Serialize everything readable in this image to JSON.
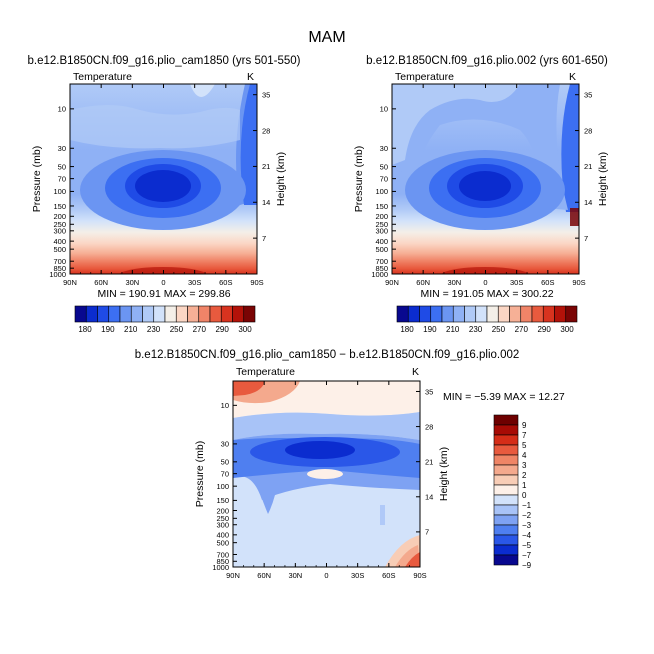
{
  "page": {
    "title": "MAM"
  },
  "colors": {
    "abs_scale": [
      "#08088f",
      "#0b2ccf",
      "#1f4be6",
      "#3c6ff2",
      "#6b95f2",
      "#8fb1f5",
      "#b0caf7",
      "#d2e2fa",
      "#f4efe8",
      "#fbd6c4",
      "#f6b096",
      "#f08468",
      "#e85a3e",
      "#d8331f",
      "#b31209",
      "#7a0404"
    ],
    "diff_scale": [
      "#08088f",
      "#0b2ccf",
      "#2a57e8",
      "#4f7ff0",
      "#7ea2f3",
      "#a8c3f7",
      "#d2e2fa",
      "#fdf0e8",
      "#f8cdb6",
      "#f4a98d",
      "#ef8566",
      "#e85a3e",
      "#d52d18",
      "#a70b05",
      "#6e0000"
    ]
  },
  "chart_data": [
    {
      "type": "heatmap",
      "title": "b.e12.B1850CN.f09_g16.plio_cam1850 (yrs 501-550)",
      "subtitle": "Temperature",
      "units": "K",
      "ylabel": "Pressure (mb)",
      "y2label": "Height (km)",
      "xticks": [
        "90N",
        "60N",
        "30N",
        "0",
        "30S",
        "60S",
        "90S"
      ],
      "xvalues": [
        90,
        60,
        30,
        0,
        -30,
        -60,
        -90
      ],
      "yticks": [
        "10",
        "30",
        "50",
        "70",
        "100",
        "150",
        "200",
        "250",
        "300",
        "400",
        "500",
        "700",
        "850",
        "1000"
      ],
      "ypressure": [
        10,
        30,
        50,
        70,
        100,
        150,
        200,
        250,
        300,
        400,
        500,
        700,
        850,
        1000
      ],
      "y2ticks": [
        "35",
        "28",
        "21",
        "14",
        "7"
      ],
      "y2values": [
        35,
        28,
        21,
        14,
        7
      ],
      "ylim": [
        1000,
        5
      ],
      "min": 190.91,
      "max": 299.86,
      "stats_text": "MIN = 190.91   MAX = 299.86",
      "colorbar": {
        "labels": [
          "180",
          "190",
          "210",
          "230",
          "250",
          "270",
          "290",
          "300"
        ]
      }
    },
    {
      "type": "heatmap",
      "title": "b.e12.B1850CN.f09_g16.plio.002 (yrs 601-650)",
      "subtitle": "Temperature",
      "units": "K",
      "ylabel": "Pressure (mb)",
      "y2label": "Height (km)",
      "xticks": [
        "90N",
        "60N",
        "30N",
        "0",
        "30S",
        "60S",
        "90S"
      ],
      "xvalues": [
        90,
        60,
        30,
        0,
        -30,
        -60,
        -90
      ],
      "yticks": [
        "10",
        "30",
        "50",
        "70",
        "100",
        "150",
        "200",
        "250",
        "300",
        "400",
        "500",
        "700",
        "850",
        "1000"
      ],
      "ypressure": [
        10,
        30,
        50,
        70,
        100,
        150,
        200,
        250,
        300,
        400,
        500,
        700,
        850,
        1000
      ],
      "y2ticks": [
        "35",
        "28",
        "21",
        "14",
        "7"
      ],
      "y2values": [
        35,
        28,
        21,
        14,
        7
      ],
      "ylim": [
        1000,
        5
      ],
      "min": 191.05,
      "max": 300.22,
      "stats_text": "MIN = 191.05   MAX = 300.22",
      "colorbar": {
        "labels": [
          "180",
          "190",
          "210",
          "230",
          "250",
          "270",
          "290",
          "300"
        ]
      }
    },
    {
      "type": "heatmap",
      "title": "b.e12.B1850CN.f09_g16.plio_cam1850 − b.e12.B1850CN.f09_g16.plio.002",
      "subtitle": "Temperature",
      "units": "K",
      "ylabel": "Pressure (mb)",
      "y2label": "Height (km)",
      "xticks": [
        "90N",
        "60N",
        "30N",
        "0",
        "30S",
        "60S",
        "90S"
      ],
      "xvalues": [
        90,
        60,
        30,
        0,
        -30,
        -60,
        -90
      ],
      "yticks": [
        "10",
        "30",
        "50",
        "70",
        "100",
        "150",
        "200",
        "250",
        "300",
        "400",
        "500",
        "700",
        "850",
        "1000"
      ],
      "ypressure": [
        10,
        30,
        50,
        70,
        100,
        150,
        200,
        250,
        300,
        400,
        500,
        700,
        850,
        1000
      ],
      "y2ticks": [
        "35",
        "28",
        "21",
        "14",
        "7"
      ],
      "y2values": [
        35,
        28,
        21,
        14,
        7
      ],
      "ylim": [
        1000,
        5
      ],
      "min": -5.39,
      "max": 12.27,
      "stats_text": "MIN =  −5.39   MAX =  12.27",
      "colorbar": {
        "labels": [
          "9",
          "7",
          "5",
          "4",
          "3",
          "2",
          "1",
          "0",
          "−1",
          "−2",
          "−3",
          "−4",
          "−5",
          "−7",
          "−9"
        ]
      }
    }
  ]
}
